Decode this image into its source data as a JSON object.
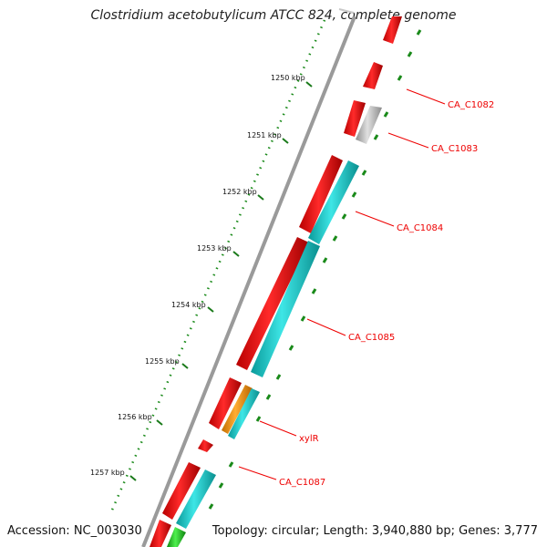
{
  "title": "Clostridium acetobutylicum ATCC 824, complete genome",
  "accession_text": "Accession: NC_003030",
  "topology_text": "Topology: circular; Length: 3,940,880 bp; Genes: 3,777",
  "ruler": {
    "unit": "kbp",
    "ticks": [
      "1250 kbp",
      "1251 kbp",
      "1252 kbp",
      "1253 kbp",
      "1254 kbp",
      "1255 kbp",
      "1256 kbp",
      "1257 kbp"
    ]
  },
  "colors": {
    "backbone": "#8a8a8a",
    "cds": "#ff0000",
    "cog_cyan": "#19d2d2",
    "cog_gray": "#bdbdbd",
    "cog_orange": "#ff9a00",
    "cog_green": "#22cc22",
    "ruler_dots": "#1a8a1a",
    "label": "#ee0000"
  },
  "genes": [
    {
      "label": "CA_C1082"
    },
    {
      "label": "CA_C1083"
    },
    {
      "label": "CA_C1084"
    },
    {
      "label": "CA_C1085"
    },
    {
      "label": "xylR"
    },
    {
      "label": "CA_C1087"
    }
  ]
}
